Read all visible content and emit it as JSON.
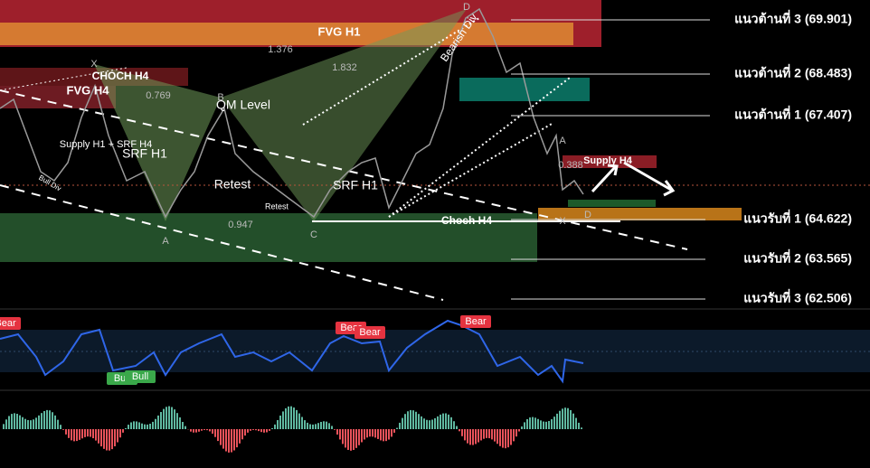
{
  "zones": [
    {
      "label": "FVG H1"
    },
    {
      "label": "CHOCH H4"
    },
    {
      "label": "FVG H4"
    },
    {
      "label": "Supply H4"
    },
    {
      "label": "Choch H4"
    }
  ],
  "levels": [
    {
      "label": "แนวต้านที่ 3 (69.901)"
    },
    {
      "label": "แนวต้านที่ 2 (68.483)"
    },
    {
      "label": "แนวต้านที่ 1 (67.407)"
    },
    {
      "label": "แนวรับที่ 1 (64.622)"
    },
    {
      "label": "แนวรับที่ 2 (63.565)"
    },
    {
      "label": "แนวรับที่ 3 (62.506)"
    }
  ],
  "points": [
    "D",
    "X",
    "B",
    "A",
    "C",
    "A",
    "X",
    "D"
  ],
  "ratios": [
    "1.376",
    "1.832",
    "0.769",
    "0.947",
    "0.388"
  ],
  "annotations": [
    "QM Level",
    "Supply H1 + SRF H4",
    "SRF H1",
    "Retest",
    "Retest",
    "SRF H1",
    "Bearish Div",
    "Bull Div"
  ],
  "signals": [
    "Bear",
    "Bear",
    "Bear",
    "Bear",
    "Bull",
    "Bull"
  ]
}
